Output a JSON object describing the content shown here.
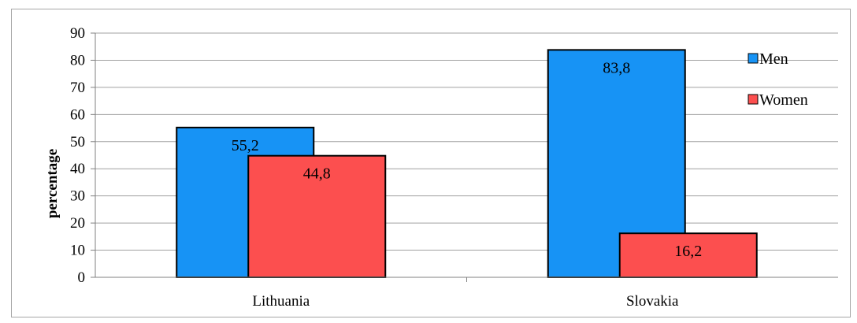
{
  "chart_data": {
    "type": "bar",
    "title": "",
    "xlabel": "",
    "ylabel": "percentage",
    "categories": [
      "Lithuania",
      "Slovakia"
    ],
    "series": [
      {
        "name": "Men",
        "values": [
          55.2,
          83.8
        ],
        "color": "#1793f5"
      },
      {
        "name": "Women",
        "values": [
          44.8,
          16.2
        ],
        "color": "#fc4f4f"
      }
    ],
    "data_labels": [
      [
        "55,2",
        "83,8"
      ],
      [
        "44,8",
        "16,2"
      ]
    ],
    "ylim": [
      0,
      90
    ],
    "yticks": [
      0,
      10,
      20,
      30,
      40,
      50,
      60,
      70,
      80,
      90
    ],
    "grid": true,
    "legend_position": "right"
  }
}
